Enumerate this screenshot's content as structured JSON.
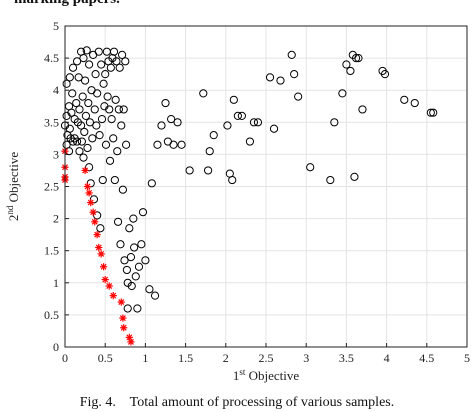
{
  "page": {
    "top_caption_fragment": "marking papers.",
    "figure_caption": "Fig. 4.    Total amount of processing of various samples."
  },
  "chart_data": {
    "type": "scatter",
    "title": "",
    "xlabel": {
      "base": "1",
      "sup": "st",
      "rest": " Objective"
    },
    "ylabel": {
      "base": "2",
      "sup": "nd",
      "rest": " Objective"
    },
    "xlim": [
      0,
      5
    ],
    "ylim": [
      0,
      5
    ],
    "xticks": [
      "0",
      "0.5",
      "1",
      "1.5",
      "2",
      "2.5",
      "3",
      "3.5",
      "4",
      "4.5",
      "5"
    ],
    "yticks": [
      "0",
      "0.5",
      "1",
      "1.5",
      "2",
      "2.5",
      "3",
      "3.5",
      "4",
      "4.5",
      "5"
    ],
    "grid": true,
    "legend": "none",
    "series": [
      {
        "marker": "circle",
        "color": "#000000",
        "points": [
          [
            0.0,
            3.45
          ],
          [
            0.02,
            3.15
          ],
          [
            0.02,
            3.6
          ],
          [
            0.02,
            4.1
          ],
          [
            0.03,
            3.3
          ],
          [
            0.05,
            3.05
          ],
          [
            0.05,
            3.75
          ],
          [
            0.06,
            3.4
          ],
          [
            0.06,
            4.2
          ],
          [
            0.07,
            3.25
          ],
          [
            0.08,
            3.65
          ],
          [
            0.09,
            3.95
          ],
          [
            0.1,
            3.2
          ],
          [
            0.1,
            4.35
          ],
          [
            0.12,
            3.55
          ],
          [
            0.12,
            3.25
          ],
          [
            0.14,
            3.8
          ],
          [
            0.15,
            4.45
          ],
          [
            0.15,
            3.2
          ],
          [
            0.16,
            3.5
          ],
          [
            0.17,
            4.2
          ],
          [
            0.18,
            3.05
          ],
          [
            0.18,
            3.7
          ],
          [
            0.2,
            4.6
          ],
          [
            0.2,
            3.45
          ],
          [
            0.21,
            3.2
          ],
          [
            0.22,
            3.9
          ],
          [
            0.23,
            2.95
          ],
          [
            0.23,
            4.5
          ],
          [
            0.24,
            3.35
          ],
          [
            0.25,
            4.15
          ],
          [
            0.26,
            3.6
          ],
          [
            0.27,
            4.62
          ],
          [
            0.28,
            3.1
          ],
          [
            0.29,
            3.8
          ],
          [
            0.3,
            2.8
          ],
          [
            0.3,
            4.4
          ],
          [
            0.31,
            3.5
          ],
          [
            0.32,
            2.55
          ],
          [
            0.33,
            4.0
          ],
          [
            0.34,
            3.25
          ],
          [
            0.35,
            4.55
          ],
          [
            0.36,
            2.3
          ],
          [
            0.37,
            3.7
          ],
          [
            0.38,
            4.25
          ],
          [
            0.39,
            3.45
          ],
          [
            0.4,
            2.05
          ],
          [
            0.4,
            3.95
          ],
          [
            0.42,
            4.6
          ],
          [
            0.43,
            3.3
          ],
          [
            0.44,
            1.85
          ],
          [
            0.45,
            4.4
          ],
          [
            0.46,
            3.55
          ],
          [
            0.47,
            2.6
          ],
          [
            0.48,
            4.1
          ],
          [
            0.49,
            3.75
          ],
          [
            0.5,
            4.25
          ],
          [
            0.51,
            3.15
          ],
          [
            0.52,
            4.6
          ],
          [
            0.53,
            3.9
          ],
          [
            0.54,
            4.45
          ],
          [
            0.55,
            3.7
          ],
          [
            0.56,
            2.9
          ],
          [
            0.57,
            4.35
          ],
          [
            0.58,
            3.55
          ],
          [
            0.59,
            4.5
          ],
          [
            0.6,
            3.25
          ],
          [
            0.61,
            4.6
          ],
          [
            0.62,
            2.6
          ],
          [
            0.63,
            3.85
          ],
          [
            0.64,
            4.45
          ],
          [
            0.65,
            3.05
          ],
          [
            0.66,
            1.95
          ],
          [
            0.67,
            3.7
          ],
          [
            0.68,
            4.35
          ],
          [
            0.69,
            1.6
          ],
          [
            0.7,
            3.45
          ],
          [
            0.71,
            4.55
          ],
          [
            0.72,
            2.45
          ],
          [
            0.73,
            3.7
          ],
          [
            0.74,
            1.35
          ],
          [
            0.75,
            4.45
          ],
          [
            0.76,
            3.15
          ],
          [
            0.77,
            1.2
          ],
          [
            0.78,
            1.0
          ],
          [
            0.78,
            0.6
          ],
          [
            0.8,
            1.85
          ],
          [
            0.82,
            1.4
          ],
          [
            0.83,
            0.95
          ],
          [
            0.85,
            2.0
          ],
          [
            0.86,
            1.55
          ],
          [
            0.88,
            1.1
          ],
          [
            0.9,
            0.6
          ],
          [
            0.92,
            1.25
          ],
          [
            0.95,
            1.6
          ],
          [
            0.97,
            2.1
          ],
          [
            1.0,
            1.35
          ],
          [
            1.05,
            0.9
          ],
          [
            1.08,
            2.55
          ],
          [
            1.12,
            0.8
          ],
          [
            1.15,
            3.15
          ],
          [
            1.2,
            3.45
          ],
          [
            1.25,
            3.8
          ],
          [
            1.28,
            3.2
          ],
          [
            1.32,
            3.55
          ],
          [
            1.35,
            3.15
          ],
          [
            1.4,
            3.5
          ],
          [
            1.45,
            3.15
          ],
          [
            1.55,
            2.75
          ],
          [
            1.72,
            3.95
          ],
          [
            1.78,
            2.75
          ],
          [
            1.8,
            3.05
          ],
          [
            1.85,
            3.3
          ],
          [
            2.02,
            3.45
          ],
          [
            2.05,
            2.7
          ],
          [
            2.08,
            2.6
          ],
          [
            2.1,
            3.85
          ],
          [
            2.15,
            3.6
          ],
          [
            2.2,
            3.6
          ],
          [
            2.3,
            3.2
          ],
          [
            2.35,
            3.5
          ],
          [
            2.4,
            3.5
          ],
          [
            2.55,
            4.2
          ],
          [
            2.6,
            3.4
          ],
          [
            2.68,
            4.15
          ],
          [
            2.82,
            4.55
          ],
          [
            2.85,
            4.25
          ],
          [
            2.9,
            3.9
          ],
          [
            3.05,
            2.8
          ],
          [
            3.3,
            2.6
          ],
          [
            3.35,
            3.5
          ],
          [
            3.45,
            3.95
          ],
          [
            3.5,
            4.4
          ],
          [
            3.55,
            4.3
          ],
          [
            3.58,
            4.55
          ],
          [
            3.6,
            2.65
          ],
          [
            3.62,
            4.5
          ],
          [
            3.65,
            4.5
          ],
          [
            3.7,
            3.7
          ],
          [
            3.95,
            4.3
          ],
          [
            3.98,
            4.25
          ],
          [
            4.22,
            3.85
          ],
          [
            4.35,
            3.8
          ],
          [
            4.55,
            3.65
          ],
          [
            4.58,
            3.65
          ]
        ]
      },
      {
        "marker": "star",
        "color": "#ff0000",
        "points": [
          [
            0.0,
            3.05
          ],
          [
            0.0,
            2.8
          ],
          [
            0.0,
            2.65
          ],
          [
            0.0,
            2.6
          ],
          [
            0.25,
            2.75
          ],
          [
            0.28,
            2.5
          ],
          [
            0.3,
            2.4
          ],
          [
            0.32,
            2.25
          ],
          [
            0.35,
            2.1
          ],
          [
            0.37,
            1.95
          ],
          [
            0.4,
            1.75
          ],
          [
            0.42,
            1.55
          ],
          [
            0.45,
            1.45
          ],
          [
            0.48,
            1.25
          ],
          [
            0.5,
            1.05
          ],
          [
            0.55,
            0.95
          ],
          [
            0.6,
            0.8
          ],
          [
            0.7,
            0.7
          ],
          [
            0.72,
            0.45
          ],
          [
            0.73,
            0.3
          ],
          [
            0.8,
            0.15
          ],
          [
            0.82,
            0.08
          ]
        ]
      }
    ]
  }
}
